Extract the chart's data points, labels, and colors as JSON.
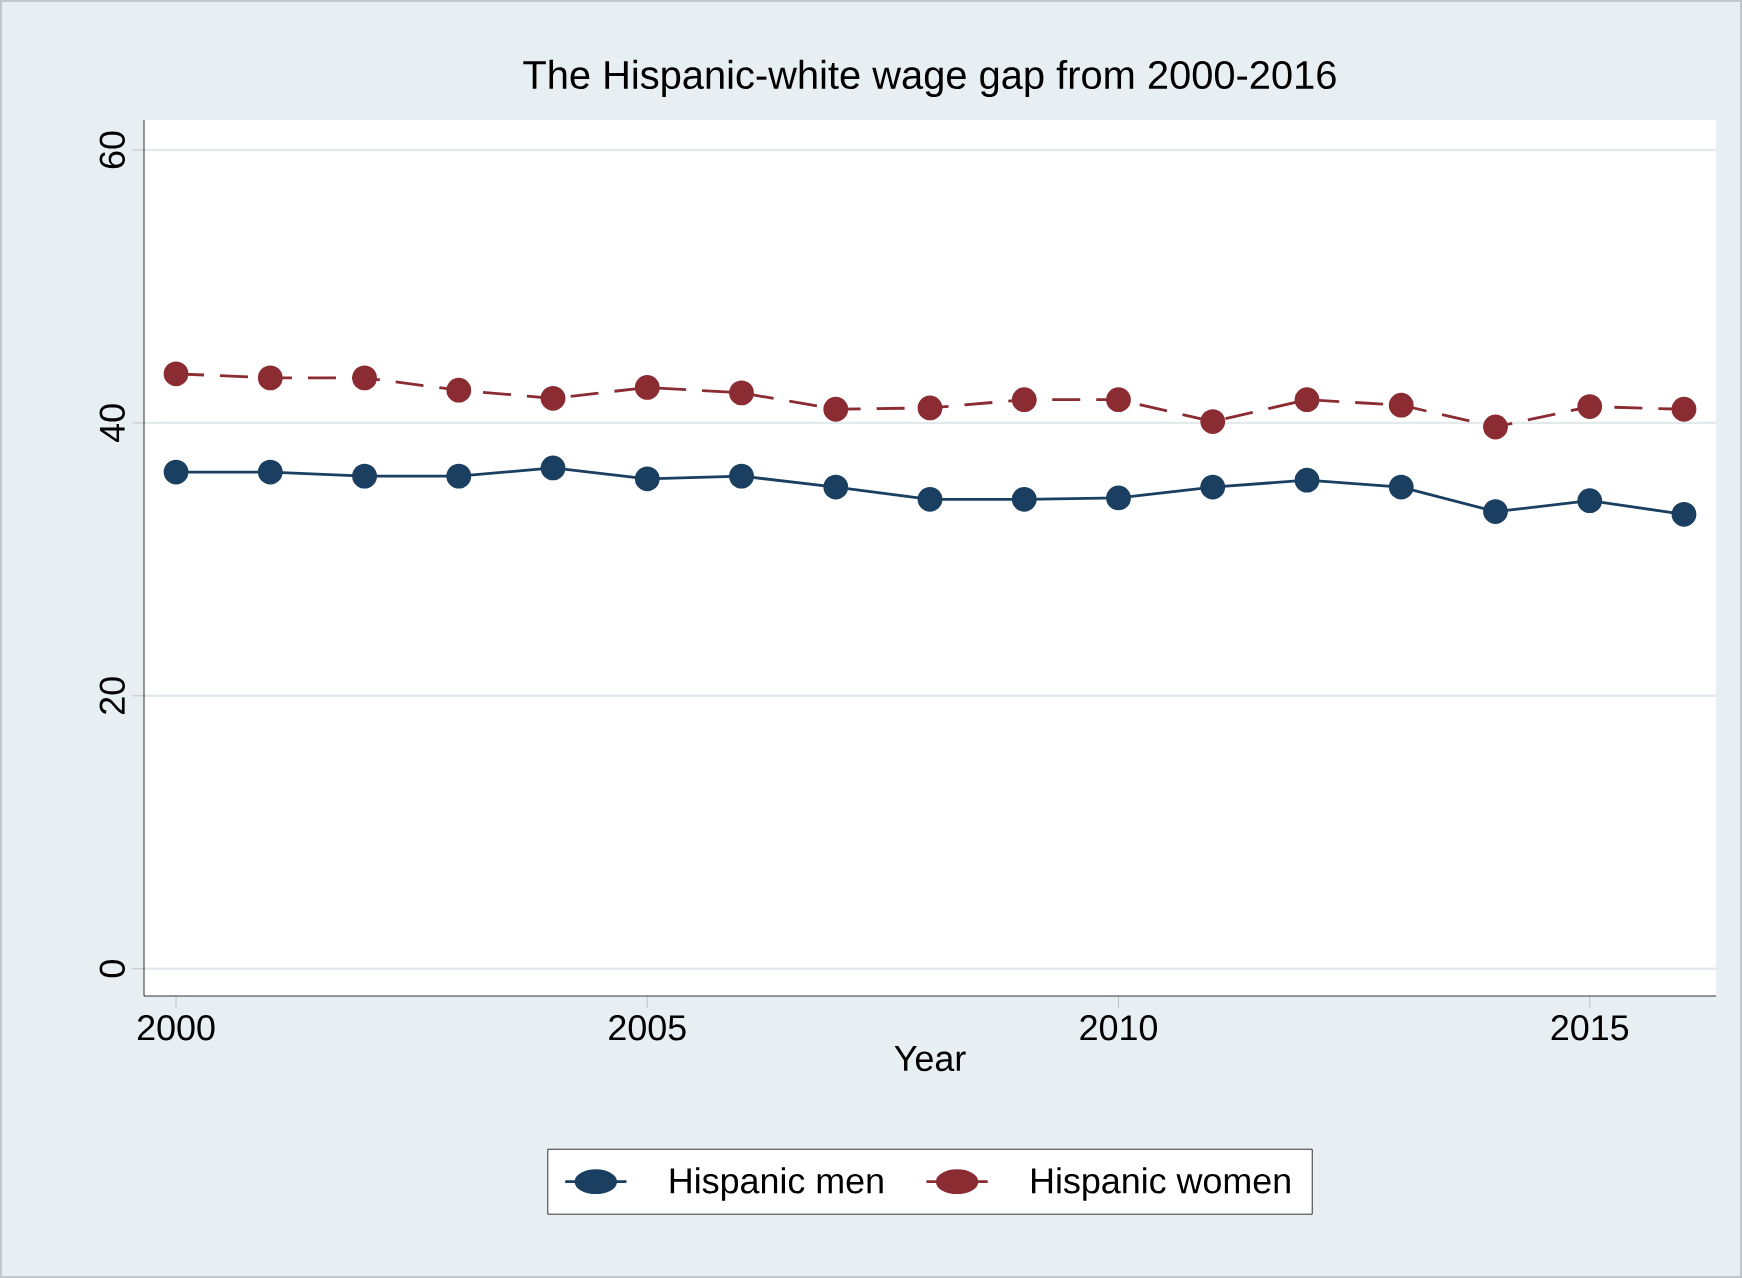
{
  "chart_data": {
    "type": "line",
    "title": "The Hispanic-white wage gap from 2000-2016",
    "xlabel": "Year",
    "x": [
      2000,
      2001,
      2002,
      2003,
      2004,
      2005,
      2006,
      2007,
      2008,
      2009,
      2010,
      2011,
      2012,
      2013,
      2014,
      2015,
      2016
    ],
    "series": [
      {
        "name": "Hispanic men",
        "color": "#1a3f61",
        "line_style": "solid",
        "values": [
          36.4,
          36.4,
          36.1,
          36.1,
          36.7,
          35.9,
          36.1,
          35.3,
          34.4,
          34.4,
          34.5,
          35.3,
          35.8,
          35.3,
          33.5,
          34.3,
          33.3
        ]
      },
      {
        "name": "Hispanic women",
        "color": "#8b2c32",
        "line_style": "dashed",
        "values": [
          43.6,
          43.3,
          43.3,
          42.4,
          41.8,
          42.6,
          42.2,
          41.0,
          41.1,
          41.7,
          41.7,
          40.1,
          41.7,
          41.3,
          39.7,
          41.2,
          41.0
        ]
      }
    ],
    "xlim": [
      1999.66,
      2016.34
    ],
    "ylim": [
      -2,
      62.2
    ],
    "xticks": [
      2000,
      2005,
      2010,
      2015
    ],
    "yticks": [
      0,
      20,
      40,
      60
    ],
    "grid": "y",
    "legend": "bottom",
    "marker": "circle"
  }
}
